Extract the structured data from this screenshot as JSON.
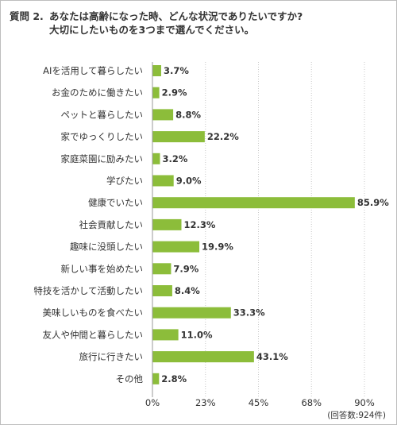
{
  "question": {
    "number": "質問 2.",
    "line1": "あなたは高齢になった時、どんな状況でありたいですか?",
    "line2": "大切にしたいものを3つまで選んでください。"
  },
  "respondent_note": "(回答数:924件)",
  "colors": {
    "bar": "#8cbd3a",
    "grid": "#c8c8c8",
    "axis": "#999999"
  },
  "chart_data": {
    "type": "bar",
    "orientation": "horizontal",
    "categories": [
      "AIを活用して暮らしたい",
      "お金のために働きたい",
      "ペットと暮らしたい",
      "家でゆっくりしたい",
      "家庭菜園に励みたい",
      "学びたい",
      "健康でいたい",
      "社会貢献したい",
      "趣味に没頭したい",
      "新しい事を始めたい",
      "特技を活かして活動したい",
      "美味しいものを食べたい",
      "友人や仲間と暮らしたい",
      "旅行に行きたい",
      "その他"
    ],
    "values": [
      3.7,
      2.9,
      8.8,
      22.2,
      3.2,
      9.0,
      85.9,
      12.3,
      19.9,
      7.9,
      8.4,
      33.3,
      11.0,
      43.1,
      2.8
    ],
    "value_labels": [
      "3.7%",
      "2.9%",
      "8.8%",
      "22.2%",
      "3.2%",
      "9.0%",
      "85.9%",
      "12.3%",
      "19.9%",
      "7.9%",
      "8.4%",
      "33.3%",
      "11.0%",
      "43.1%",
      "2.8%"
    ],
    "x_ticks": [
      "0%",
      "23%",
      "45%",
      "68%",
      "90%"
    ],
    "xlim": [
      0,
      90
    ],
    "grid": true
  }
}
